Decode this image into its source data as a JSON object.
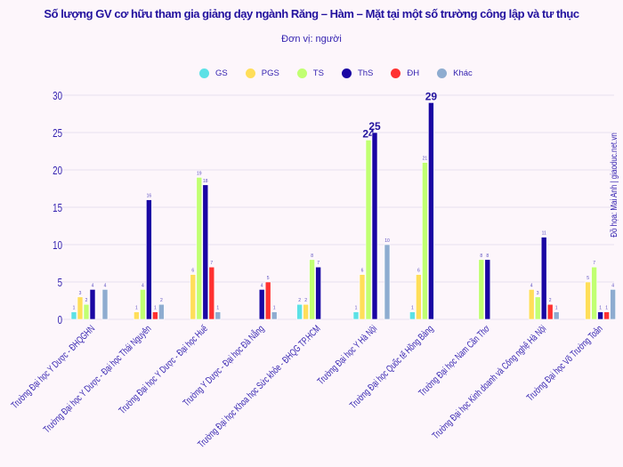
{
  "chart_data": {
    "type": "bar",
    "title": "Số lượng GV cơ hữu tham gia giảng dạy ngành Răng – Hàm – Mặt tại một số trường công lập và tư thục",
    "subtitle": "Đơn vị: người",
    "credit": "Đồ họa: Mai Anh | giaoduc.net.vn",
    "xlabel": "",
    "ylabel": "",
    "ylim": [
      0,
      30
    ],
    "yticks": [
      "0",
      "5",
      "10",
      "15",
      "20",
      "25",
      "30"
    ],
    "grid": true,
    "legend_position": "top",
    "categories": [
      "Trường Đại học Y Dược - ĐHQGHN",
      "Trường Đại học Y Dược - Đại học Thái Nguyên",
      "Trường Đại học Y Dược - Đại học Huế",
      "Trường Y Dược - Đại học Đà Nẵng",
      "Trường Đại học Khoa học Sức khỏe - ĐHQG TP.HCM",
      "Trường Đại học Y Hà Nội",
      "Trường Đại học Quốc tế Hồng Bàng",
      "Trường Đại học Nam Cần Thơ",
      "Trường Đại học Kinh doanh và Công nghệ Hà Nội",
      "Trường Đại học Võ Trường Toản"
    ],
    "series": [
      {
        "name": "GS",
        "color": "#5ce1e6",
        "values": [
          1,
          null,
          null,
          null,
          2,
          1,
          1,
          null,
          null,
          null
        ]
      },
      {
        "name": "PGS",
        "color": "#ffde59",
        "values": [
          3,
          1,
          6,
          null,
          2,
          6,
          6,
          null,
          4,
          5
        ]
      },
      {
        "name": "TS",
        "color": "#c1ff72",
        "values": [
          2,
          4,
          19,
          null,
          8,
          24,
          21,
          8,
          3,
          7
        ]
      },
      {
        "name": "ThS",
        "color": "#1a06a3",
        "values": [
          4,
          16,
          18,
          4,
          7,
          25,
          29,
          8,
          11,
          1
        ]
      },
      {
        "name": "ĐH",
        "color": "#ff3131",
        "values": [
          null,
          1,
          7,
          5,
          null,
          null,
          null,
          null,
          2,
          1
        ]
      },
      {
        "name": "Khác",
        "color": "#8eacd0",
        "values": [
          4,
          2,
          1,
          1,
          null,
          10,
          null,
          null,
          1,
          4
        ]
      }
    ]
  }
}
